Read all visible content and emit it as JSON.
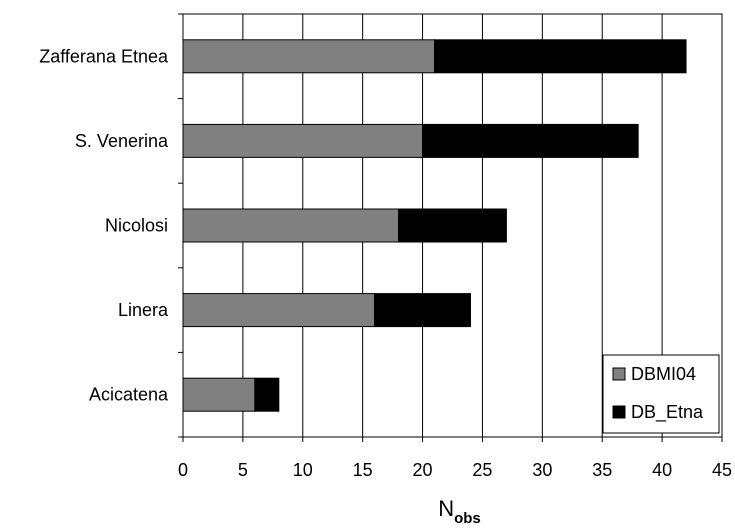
{
  "chart_data": {
    "type": "bar",
    "orientation": "horizontal",
    "stacked": true,
    "categories": [
      "Zafferana Etnea",
      "S. Venerina",
      "Nicolosi",
      "Linera",
      "Acicatena"
    ],
    "display_labels": [
      "Zafferana Etnea",
      "S. Venerina",
      "Nicolosi",
      "Linera",
      "Acicatena"
    ],
    "series": [
      {
        "name": "DBMI04",
        "values": [
          21,
          20,
          18,
          16,
          6
        ],
        "color": "#808080"
      },
      {
        "name": "DB_Etna",
        "values": [
          21,
          18,
          9,
          8,
          2
        ],
        "color": "#000000"
      }
    ],
    "xlabel_main": "N",
    "xlabel_sub": "obs",
    "ylabel": "",
    "xlim": [
      0,
      45
    ],
    "xticks": [
      0,
      5,
      10,
      15,
      20,
      25,
      30,
      35,
      40,
      45
    ],
    "grid": "vertical",
    "legend": "bottom-right"
  }
}
